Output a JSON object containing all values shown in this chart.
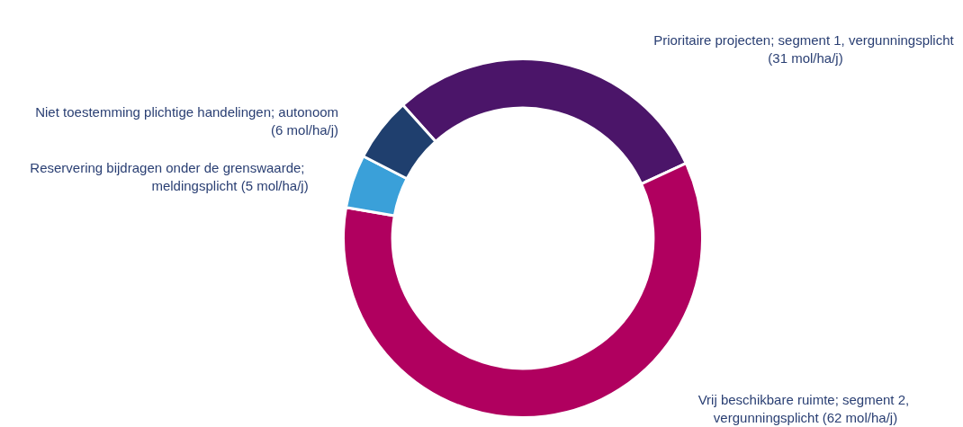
{
  "chart_data": {
    "type": "donut",
    "categories": [
      "Prioritaire projecten; segment 1, vergunningsplicht (31 mol/ha/j)",
      "Vrij beschikbare ruimte; segment 2, vergunningsplicht (62 mol/ha/j)",
      "Reservering bijdragen onder de grenswaarde; meldingsplicht (5 mol/ha/j)",
      "Niet toestemming plichtige handelingen; autonoom (6 mol/ha/j)"
    ],
    "values": [
      31,
      62,
      5,
      6
    ],
    "colors": [
      "#4b1569",
      "#b0005f",
      "#3aa0d9",
      "#1f3f6e"
    ],
    "legend": false
  }
}
